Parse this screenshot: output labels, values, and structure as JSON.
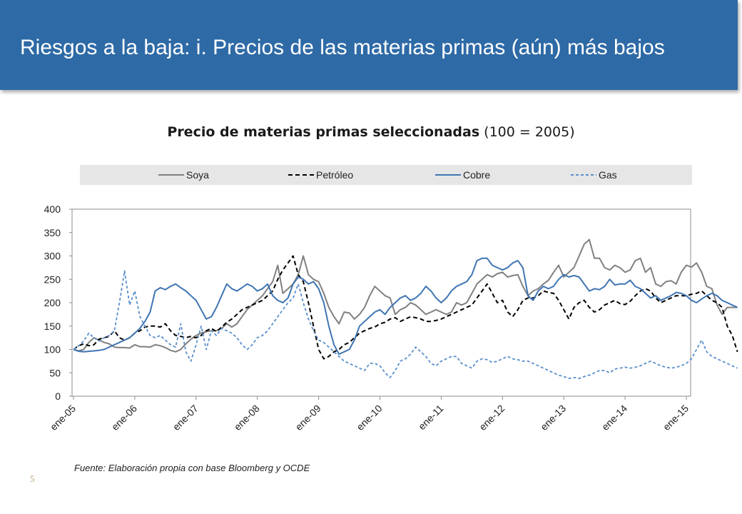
{
  "header": {
    "title": "Riesgos a la baja: i. Precios de las materias primas (aún) más bajos"
  },
  "chart_title": {
    "bold": "Precio de materias primas seleccionadas",
    "rest": " (100 = 2005)"
  },
  "footer": {
    "source": "Fuente: Elaboración propia con base Bloomberg y OCDE",
    "page": "5"
  },
  "colors": {
    "header_bg": "#2e6aa6",
    "soya": "#808080",
    "petroleo": "#000000",
    "cobre": "#3f75b3",
    "gas": "#5b8fcb"
  },
  "chart_data": {
    "type": "line",
    "title": "Precio de materias primas seleccionadas (100 = 2005)",
    "ylim": [
      0,
      400
    ],
    "yticks": [
      0,
      50,
      100,
      150,
      200,
      250,
      300,
      350,
      400
    ],
    "xtick_labels": [
      "ene-05",
      "ene-06",
      "ene-07",
      "ene-08",
      "ene-09",
      "ene-10",
      "ene-11",
      "ene-12",
      "ene-13",
      "ene-14",
      "ene-15"
    ],
    "x_start": "ene-05",
    "x_end": "ene-15",
    "legend_position": "top",
    "series": [
      {
        "name": "Soya",
        "color": "#808080",
        "dash": "solid",
        "values": [
          100,
          97,
          100,
          115,
          125,
          120,
          115,
          112,
          105,
          104,
          104,
          103,
          110,
          106,
          106,
          105,
          110,
          108,
          104,
          98,
          95,
          100,
          112,
          122,
          130,
          135,
          138,
          140,
          140,
          145,
          155,
          148,
          155,
          170,
          185,
          195,
          205,
          215,
          230,
          245,
          280,
          220,
          230,
          240,
          260,
          300,
          260,
          250,
          245,
          220,
          190,
          170,
          155,
          180,
          178,
          165,
          175,
          190,
          215,
          235,
          225,
          215,
          210,
          175,
          185,
          190,
          200,
          195,
          185,
          175,
          180,
          185,
          180,
          175,
          180,
          200,
          195,
          200,
          220,
          240,
          250,
          260,
          255,
          262,
          265,
          255,
          258,
          260,
          235,
          215,
          225,
          230,
          240,
          248,
          265,
          280,
          255,
          265,
          275,
          300,
          325,
          335,
          295,
          295,
          275,
          270,
          280,
          275,
          265,
          270,
          290,
          295,
          265,
          275,
          240,
          235,
          245,
          247,
          240,
          265,
          280,
          276,
          285,
          265,
          235,
          230,
          195,
          175,
          190,
          190,
          190
        ]
      },
      {
        "name": "Petróleo",
        "color": "#000000",
        "dash": "dashed",
        "values": [
          100,
          108,
          112,
          108,
          110,
          122,
          125,
          128,
          140,
          125,
          120,
          125,
          135,
          140,
          148,
          150,
          150,
          148,
          155,
          140,
          130,
          128,
          125,
          128,
          125,
          130,
          140,
          145,
          138,
          148,
          158,
          165,
          175,
          185,
          190,
          195,
          200,
          205,
          215,
          225,
          250,
          270,
          285,
          300,
          260,
          245,
          200,
          150,
          100,
          80,
          85,
          95,
          100,
          110,
          115,
          125,
          135,
          140,
          145,
          148,
          155,
          158,
          165,
          168,
          160,
          165,
          170,
          168,
          165,
          160,
          160,
          162,
          165,
          170,
          175,
          180,
          185,
          190,
          195,
          210,
          225,
          240,
          220,
          200,
          205,
          180,
          170,
          185,
          205,
          210,
          210,
          215,
          225,
          222,
          220,
          205,
          185,
          165,
          190,
          200,
          205,
          190,
          180,
          185,
          195,
          200,
          205,
          198,
          196,
          203,
          215,
          225,
          230,
          225,
          210,
          200,
          205,
          210,
          215,
          215,
          215,
          218,
          220,
          225,
          215,
          205,
          200,
          190,
          150,
          130,
          95
        ]
      },
      {
        "name": "Cobre",
        "color": "#3f75b3",
        "dash": "solid",
        "values": [
          100,
          96,
          95,
          96,
          97,
          98,
          100,
          105,
          110,
          115,
          120,
          125,
          135,
          145,
          160,
          180,
          225,
          232,
          228,
          235,
          240,
          232,
          225,
          215,
          205,
          185,
          165,
          170,
          190,
          215,
          240,
          230,
          225,
          232,
          240,
          235,
          225,
          230,
          240,
          215,
          205,
          200,
          210,
          240,
          255,
          250,
          240,
          245,
          230,
          200,
          150,
          110,
          90,
          95,
          100,
          120,
          150,
          160,
          170,
          180,
          185,
          175,
          190,
          200,
          210,
          215,
          205,
          210,
          220,
          235,
          225,
          210,
          200,
          210,
          225,
          235,
          240,
          245,
          260,
          290,
          295,
          295,
          280,
          275,
          270,
          275,
          285,
          290,
          275,
          215,
          205,
          225,
          235,
          230,
          235,
          250,
          260,
          255,
          258,
          255,
          240,
          225,
          230,
          228,
          235,
          250,
          238,
          240,
          240,
          248,
          235,
          230,
          220,
          210,
          215,
          205,
          210,
          215,
          222,
          220,
          215,
          205,
          200,
          208,
          215,
          220,
          215,
          205,
          200,
          195,
          190
        ]
      },
      {
        "name": "Gas",
        "color": "#5b8fcb",
        "dash": "dashed",
        "values": [
          100,
          108,
          118,
          135,
          125,
          118,
          125,
          130,
          140,
          200,
          268,
          195,
          225,
          170,
          150,
          130,
          125,
          130,
          120,
          110,
          105,
          155,
          95,
          75,
          110,
          150,
          100,
          140,
          130,
          145,
          140,
          135,
          125,
          110,
          100,
          110,
          125,
          130,
          140,
          155,
          170,
          185,
          200,
          210,
          240,
          200,
          165,
          140,
          120,
          115,
          105,
          95,
          85,
          75,
          70,
          65,
          60,
          55,
          70,
          70,
          65,
          50,
          40,
          55,
          75,
          80,
          90,
          105,
          95,
          85,
          70,
          65,
          75,
          80,
          85,
          85,
          70,
          65,
          60,
          75,
          80,
          78,
          72,
          75,
          80,
          85,
          80,
          78,
          75,
          75,
          70,
          65,
          60,
          55,
          50,
          45,
          42,
          38,
          40,
          38,
          42,
          45,
          50,
          55,
          55,
          50,
          58,
          60,
          62,
          60,
          62,
          65,
          70,
          75,
          70,
          65,
          62,
          60,
          62,
          65,
          70,
          80,
          100,
          120,
          95,
          85,
          80,
          75,
          70,
          65,
          60
        ]
      }
    ]
  }
}
